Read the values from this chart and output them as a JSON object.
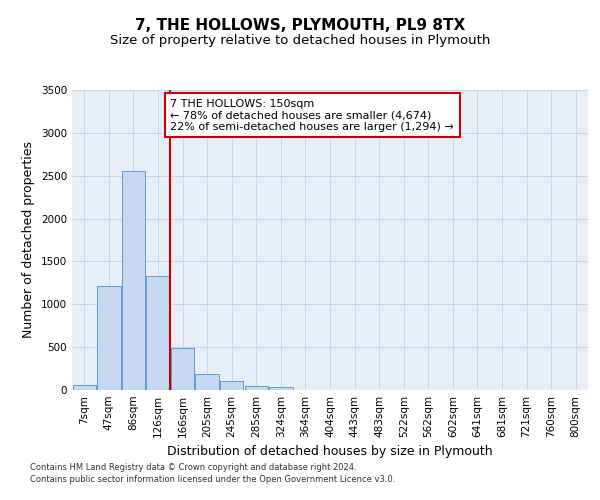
{
  "title": "7, THE HOLLOWS, PLYMOUTH, PL9 8TX",
  "subtitle": "Size of property relative to detached houses in Plymouth",
  "xlabel": "Distribution of detached houses by size in Plymouth",
  "ylabel": "Number of detached properties",
  "bar_categories": [
    "7sqm",
    "47sqm",
    "86sqm",
    "126sqm",
    "166sqm",
    "205sqm",
    "245sqm",
    "285sqm",
    "324sqm",
    "364sqm",
    "404sqm",
    "443sqm",
    "483sqm",
    "522sqm",
    "562sqm",
    "602sqm",
    "641sqm",
    "681sqm",
    "721sqm",
    "760sqm",
    "800sqm"
  ],
  "bar_values": [
    55,
    1210,
    2560,
    1330,
    490,
    185,
    100,
    50,
    35,
    0,
    0,
    0,
    0,
    0,
    0,
    0,
    0,
    0,
    0,
    0,
    0
  ],
  "bar_color": "#c5d8ef",
  "bar_edgecolor": "#5b9bd5",
  "vline_x": 3.5,
  "vline_color": "#cc0000",
  "ylim": [
    0,
    3500
  ],
  "annotation_text": "7 THE HOLLOWS: 150sqm\n← 78% of detached houses are smaller (4,674)\n22% of semi-detached houses are larger (1,294) →",
  "annotation_box_color": "#cc0000",
  "footnote1": "Contains HM Land Registry data © Crown copyright and database right 2024.",
  "footnote2": "Contains public sector information licensed under the Open Government Licence v3.0.",
  "grid_color": "#c8d4e8",
  "background_color": "#e8eef8",
  "fig_background": "#ffffff",
  "title_fontsize": 11,
  "subtitle_fontsize": 9.5,
  "tick_fontsize": 7.5,
  "ylabel_fontsize": 9,
  "xlabel_fontsize": 9,
  "annotation_fontsize": 8,
  "footnote_fontsize": 6
}
